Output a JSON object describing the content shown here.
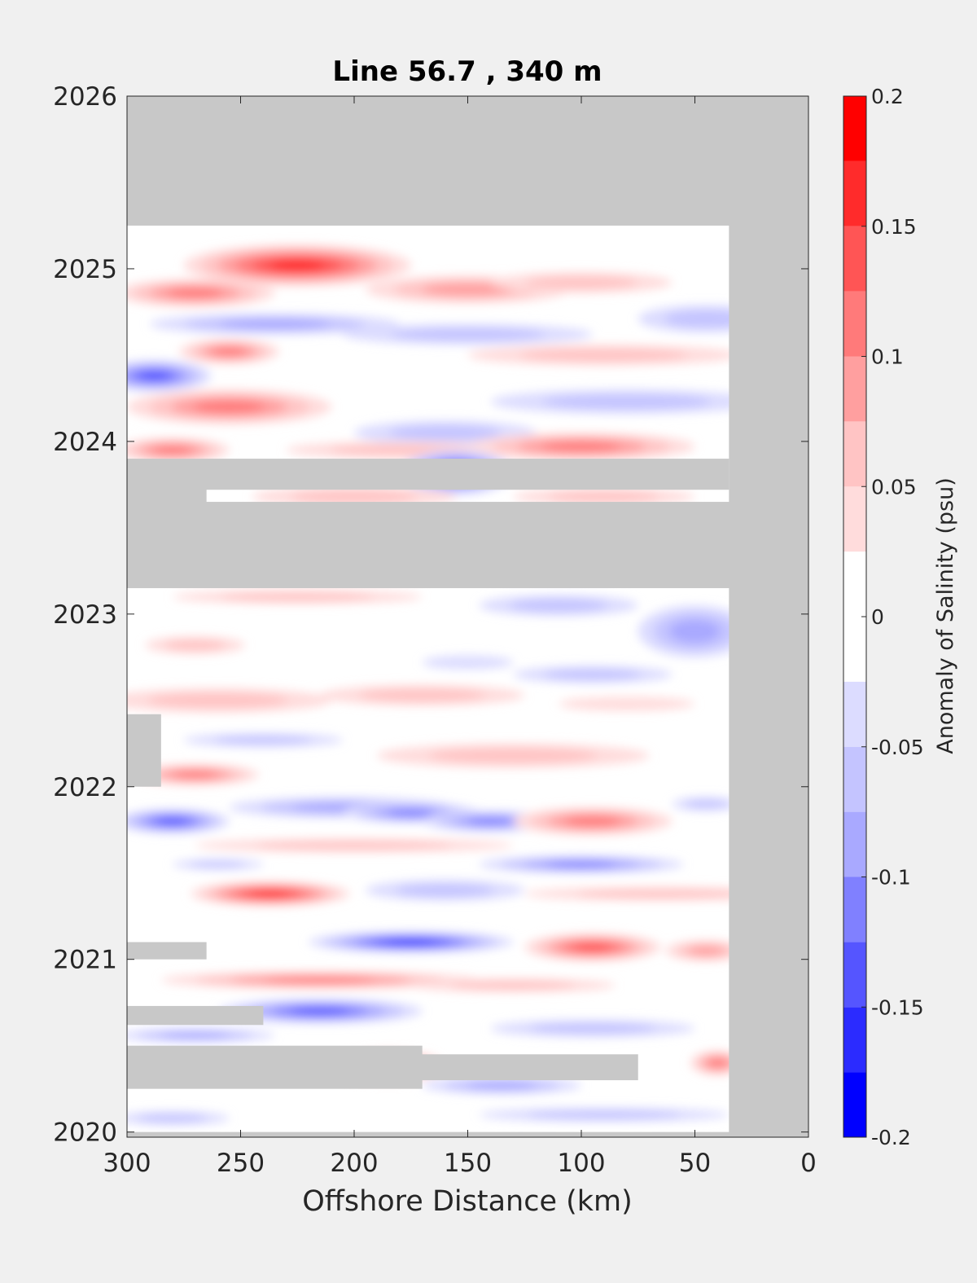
{
  "chart_data": {
    "type": "heatmap",
    "title": "Line 56.7 , 340 m",
    "xlabel": "Offshore Distance (km)",
    "ylabel": "",
    "xlim": [
      300,
      0
    ],
    "ylim": [
      2019.97,
      2026
    ],
    "x_ticks": [
      300,
      250,
      200,
      150,
      100,
      50,
      0
    ],
    "y_ticks": [
      2020,
      2021,
      2022,
      2023,
      2024,
      2025,
      2026
    ],
    "colorbar": {
      "label": "Anomaly of Salinity (psu)",
      "range": [
        -0.2,
        0.2
      ],
      "levels": [
        -0.2,
        -0.175,
        -0.15,
        -0.125,
        -0.1,
        -0.075,
        -0.05,
        -0.025,
        0,
        0.025,
        0.05,
        0.075,
        0.1,
        0.125,
        0.15,
        0.175,
        0.2
      ],
      "colors": [
        "#0000ff",
        "#2b2bff",
        "#5555ff",
        "#8080ff",
        "#a9a9ff",
        "#c4c4ff",
        "#dcdcff",
        "#ffffff",
        "#ffffff",
        "#ffdcdc",
        "#ffc4c4",
        "#ff9f9f",
        "#ff7a7a",
        "#ff5555",
        "#ff2b2b",
        "#ff0000"
      ],
      "tick_values": [
        0.2,
        0.15,
        0.1,
        0.05,
        0,
        -0.05,
        -0.1,
        -0.15,
        -0.2
      ],
      "tick_labels": [
        "0.2",
        "0.15",
        "0.1",
        "0.05",
        "0",
        "-0.05",
        "-0.1",
        "-0.15",
        "-0.2"
      ]
    },
    "nodata_color": "#c8c8c8",
    "nodata": [
      {
        "x": [
          300,
          0
        ],
        "y": [
          2025.25,
          2026
        ]
      },
      {
        "x": [
          35,
          0
        ],
        "y": [
          2019.97,
          2026
        ]
      },
      {
        "x": [
          300,
          0
        ],
        "y": [
          2023.15,
          2023.65
        ]
      },
      {
        "x": [
          300,
          35
        ],
        "y": [
          2023.72,
          2023.9
        ]
      },
      {
        "x": [
          300,
          265
        ],
        "y": [
          2023.55,
          2023.8
        ]
      },
      {
        "x": [
          300,
          75
        ],
        "y": [
          2020.3,
          2020.45
        ]
      },
      {
        "x": [
          300,
          170
        ],
        "y": [
          2020.25,
          2020.5
        ]
      },
      {
        "x": [
          300,
          265
        ],
        "y": [
          2021.0,
          2021.1
        ]
      },
      {
        "x": [
          300,
          240
        ],
        "y": [
          2020.62,
          2020.73
        ]
      },
      {
        "x": [
          300,
          285
        ],
        "y": [
          2022.0,
          2022.42
        ]
      },
      {
        "x": [
          300,
          0
        ],
        "y": [
          2019.97,
          2020.0
        ]
      }
    ],
    "anomalies": [
      {
        "x": 225,
        "y": 2025.02,
        "rx": 50,
        "ry": 0.12,
        "value": 0.17
      },
      {
        "x": 270,
        "y": 2024.86,
        "rx": 35,
        "ry": 0.08,
        "value": 0.12
      },
      {
        "x": 150,
        "y": 2024.88,
        "rx": 45,
        "ry": 0.08,
        "value": 0.09
      },
      {
        "x": 100,
        "y": 2024.92,
        "rx": 40,
        "ry": 0.06,
        "value": 0.06
      },
      {
        "x": 235,
        "y": 2024.68,
        "rx": 55,
        "ry": 0.06,
        "value": -0.09
      },
      {
        "x": 150,
        "y": 2024.62,
        "rx": 55,
        "ry": 0.06,
        "value": -0.06
      },
      {
        "x": 45,
        "y": 2024.71,
        "rx": 30,
        "ry": 0.08,
        "value": -0.07
      },
      {
        "x": 255,
        "y": 2024.52,
        "rx": 22,
        "ry": 0.07,
        "value": 0.1
      },
      {
        "x": 288,
        "y": 2024.38,
        "rx": 25,
        "ry": 0.09,
        "value": -0.14
      },
      {
        "x": 90,
        "y": 2024.5,
        "rx": 60,
        "ry": 0.06,
        "value": 0.06
      },
      {
        "x": 255,
        "y": 2024.2,
        "rx": 45,
        "ry": 0.1,
        "value": 0.11
      },
      {
        "x": 80,
        "y": 2024.23,
        "rx": 60,
        "ry": 0.07,
        "value": -0.06
      },
      {
        "x": 160,
        "y": 2024.05,
        "rx": 40,
        "ry": 0.07,
        "value": -0.07
      },
      {
        "x": 280,
        "y": 2023.95,
        "rx": 25,
        "ry": 0.07,
        "value": 0.12
      },
      {
        "x": 180,
        "y": 2023.95,
        "rx": 50,
        "ry": 0.05,
        "value": 0.07
      },
      {
        "x": 100,
        "y": 2023.97,
        "rx": 50,
        "ry": 0.08,
        "value": 0.1
      },
      {
        "x": 155,
        "y": 2023.82,
        "rx": 25,
        "ry": 0.13,
        "value": -0.17
      },
      {
        "x": 200,
        "y": 2023.68,
        "rx": 45,
        "ry": 0.06,
        "value": 0.07
      },
      {
        "x": 90,
        "y": 2023.68,
        "rx": 40,
        "ry": 0.05,
        "value": 0.05
      },
      {
        "x": 50,
        "y": 2022.9,
        "rx": 25,
        "ry": 0.15,
        "value": -0.09
      },
      {
        "x": 110,
        "y": 2023.05,
        "rx": 35,
        "ry": 0.06,
        "value": -0.05
      },
      {
        "x": 225,
        "y": 2023.1,
        "rx": 55,
        "ry": 0.04,
        "value": 0.05
      },
      {
        "x": 95,
        "y": 2022.65,
        "rx": 35,
        "ry": 0.05,
        "value": -0.06
      },
      {
        "x": 150,
        "y": 2022.72,
        "rx": 20,
        "ry": 0.04,
        "value": -0.04
      },
      {
        "x": 270,
        "y": 2022.82,
        "rx": 22,
        "ry": 0.05,
        "value": 0.05
      },
      {
        "x": 260,
        "y": 2022.5,
        "rx": 50,
        "ry": 0.07,
        "value": 0.07
      },
      {
        "x": 170,
        "y": 2022.53,
        "rx": 45,
        "ry": 0.06,
        "value": 0.06
      },
      {
        "x": 80,
        "y": 2022.48,
        "rx": 30,
        "ry": 0.04,
        "value": 0.04
      },
      {
        "x": 240,
        "y": 2022.27,
        "rx": 35,
        "ry": 0.04,
        "value": -0.05
      },
      {
        "x": 130,
        "y": 2022.18,
        "rx": 60,
        "ry": 0.07,
        "value": 0.05
      },
      {
        "x": 270,
        "y": 2022.07,
        "rx": 28,
        "ry": 0.06,
        "value": 0.12
      },
      {
        "x": 280,
        "y": 2021.8,
        "rx": 25,
        "ry": 0.07,
        "value": -0.15
      },
      {
        "x": 205,
        "y": 2021.88,
        "rx": 50,
        "ry": 0.06,
        "value": -0.09
      },
      {
        "x": 175,
        "y": 2021.85,
        "rx": 30,
        "ry": 0.06,
        "value": -0.12
      },
      {
        "x": 140,
        "y": 2021.8,
        "rx": 30,
        "ry": 0.06,
        "value": -0.12
      },
      {
        "x": 95,
        "y": 2021.8,
        "rx": 35,
        "ry": 0.08,
        "value": 0.12
      },
      {
        "x": 45,
        "y": 2021.9,
        "rx": 15,
        "ry": 0.04,
        "value": -0.05
      },
      {
        "x": 200,
        "y": 2021.66,
        "rx": 70,
        "ry": 0.04,
        "value": 0.05
      },
      {
        "x": 100,
        "y": 2021.55,
        "rx": 45,
        "ry": 0.05,
        "value": -0.1
      },
      {
        "x": 260,
        "y": 2021.55,
        "rx": 20,
        "ry": 0.03,
        "value": -0.05
      },
      {
        "x": 237,
        "y": 2021.38,
        "rx": 35,
        "ry": 0.07,
        "value": 0.16
      },
      {
        "x": 160,
        "y": 2021.4,
        "rx": 35,
        "ry": 0.06,
        "value": -0.06
      },
      {
        "x": 65,
        "y": 2021.38,
        "rx": 60,
        "ry": 0.04,
        "value": 0.05
      },
      {
        "x": 175,
        "y": 2021.1,
        "rx": 45,
        "ry": 0.06,
        "value": -0.16
      },
      {
        "x": 95,
        "y": 2021.07,
        "rx": 30,
        "ry": 0.08,
        "value": 0.14
      },
      {
        "x": 45,
        "y": 2021.05,
        "rx": 18,
        "ry": 0.06,
        "value": 0.09
      },
      {
        "x": 215,
        "y": 2020.88,
        "rx": 70,
        "ry": 0.05,
        "value": 0.11
      },
      {
        "x": 130,
        "y": 2020.85,
        "rx": 45,
        "ry": 0.04,
        "value": 0.07
      },
      {
        "x": 215,
        "y": 2020.7,
        "rx": 45,
        "ry": 0.07,
        "value": -0.14
      },
      {
        "x": 95,
        "y": 2020.6,
        "rx": 45,
        "ry": 0.05,
        "value": -0.05
      },
      {
        "x": 270,
        "y": 2020.56,
        "rx": 35,
        "ry": 0.04,
        "value": -0.09
      },
      {
        "x": 185,
        "y": 2020.38,
        "rx": 25,
        "ry": 0.09,
        "value": 0.17
      },
      {
        "x": 40,
        "y": 2020.4,
        "rx": 12,
        "ry": 0.07,
        "value": 0.12
      },
      {
        "x": 135,
        "y": 2020.27,
        "rx": 35,
        "ry": 0.05,
        "value": -0.09
      },
      {
        "x": 90,
        "y": 2020.1,
        "rx": 55,
        "ry": 0.04,
        "value": -0.07
      },
      {
        "x": 280,
        "y": 2020.08,
        "rx": 25,
        "ry": 0.04,
        "value": -0.05
      }
    ]
  }
}
